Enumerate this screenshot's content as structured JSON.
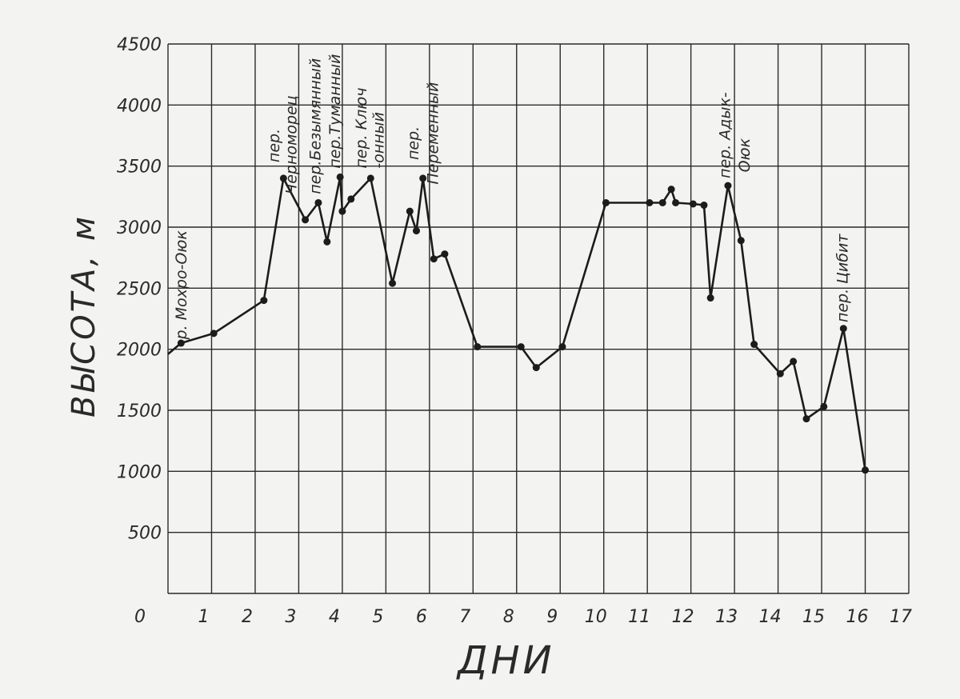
{
  "chart_data": {
    "type": "line",
    "title": "",
    "xlabel": "ДНИ",
    "ylabel": "ВЫСОТА, м",
    "xlim": [
      0,
      17
    ],
    "ylim": [
      0,
      4500
    ],
    "x_ticks": [
      "0",
      "1",
      "2",
      "3",
      "4",
      "5",
      "6",
      "7",
      "8",
      "9",
      "10",
      "11",
      "12",
      "13",
      "14",
      "15",
      "16",
      "17"
    ],
    "y_ticks": [
      "500",
      "1000",
      "1500",
      "2000",
      "2500",
      "3000",
      "3500",
      "4000",
      "4500"
    ],
    "grid": true,
    "legend": "none",
    "colors": {
      "line": "#1c1c1c",
      "grid": "#2b2b2b",
      "background": "#f3f3f1"
    },
    "series": [
      {
        "x": [
          0.0,
          0.3,
          1.05,
          2.2,
          2.65,
          3.15,
          3.45,
          3.65,
          3.95,
          4.0,
          4.2,
          4.65,
          5.15,
          5.55,
          5.7,
          5.85,
          6.1,
          6.35,
          7.1,
          8.1,
          8.45,
          9.05,
          10.05,
          11.05,
          11.35,
          11.55,
          11.65,
          12.05,
          12.3,
          12.45,
          12.85,
          13.15,
          13.45,
          14.05,
          14.35,
          14.65,
          15.05,
          15.5,
          16.0
        ],
        "y": [
          1960,
          2050,
          2130,
          2400,
          3400,
          3060,
          3200,
          2880,
          3410,
          3130,
          3230,
          3400,
          2540,
          3130,
          2970,
          3400,
          2740,
          2780,
          2020,
          2020,
          1850,
          2020,
          3200,
          3200,
          3200,
          3310,
          3200,
          3190,
          3180,
          2420,
          3340,
          2890,
          2040,
          1800,
          1900,
          1430,
          1530,
          2170,
          1010
        ]
      }
    ],
    "annotations": [
      {
        "text": "р. Мохро-Оюк",
        "x": 0.42,
        "y": 2080
      },
      {
        "text": "пер.",
        "x": 2.55,
        "y": 3530
      },
      {
        "text": "Черноморец",
        "x": 2.95,
        "y": 3270
      },
      {
        "text": "пер.Безымянный",
        "x": 3.5,
        "y": 3270
      },
      {
        "text": "пер.Туманный",
        "x": 3.95,
        "y": 3480
      },
      {
        "text": "пер. Ключ",
        "x": 4.55,
        "y": 3480
      },
      {
        "text": "-онный",
        "x": 4.95,
        "y": 3480
      },
      {
        "text": "пер.",
        "x": 5.75,
        "y": 3550
      },
      {
        "text": "Переменный",
        "x": 6.2,
        "y": 3350
      },
      {
        "text": "пер. Адык-",
        "x": 12.9,
        "y": 3400
      },
      {
        "text": "Оюк",
        "x": 13.35,
        "y": 3450
      },
      {
        "text": "пер. Цибит",
        "x": 15.6,
        "y": 2220
      }
    ]
  }
}
